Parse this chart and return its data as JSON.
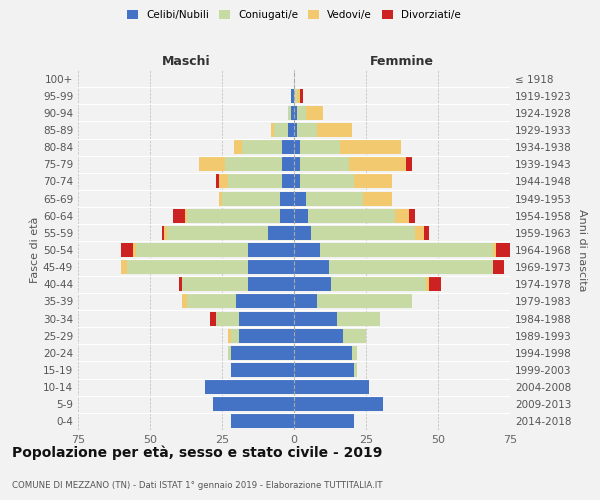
{
  "age_groups": [
    "0-4",
    "5-9",
    "10-14",
    "15-19",
    "20-24",
    "25-29",
    "30-34",
    "35-39",
    "40-44",
    "45-49",
    "50-54",
    "55-59",
    "60-64",
    "65-69",
    "70-74",
    "75-79",
    "80-84",
    "85-89",
    "90-94",
    "95-99",
    "100+"
  ],
  "birth_years": [
    "2014-2018",
    "2009-2013",
    "2004-2008",
    "1999-2003",
    "1994-1998",
    "1989-1993",
    "1984-1988",
    "1979-1983",
    "1974-1978",
    "1969-1973",
    "1964-1968",
    "1959-1963",
    "1954-1958",
    "1949-1953",
    "1944-1948",
    "1939-1943",
    "1934-1938",
    "1929-1933",
    "1924-1928",
    "1919-1923",
    "≤ 1918"
  ],
  "maschi": {
    "celibi": [
      22,
      28,
      31,
      22,
      22,
      19,
      19,
      20,
      16,
      16,
      16,
      9,
      5,
      5,
      4,
      4,
      4,
      2,
      1,
      1,
      0
    ],
    "coniugati": [
      0,
      0,
      0,
      0,
      1,
      3,
      8,
      17,
      23,
      42,
      39,
      35,
      32,
      20,
      19,
      20,
      14,
      5,
      1,
      0,
      0
    ],
    "vedovi": [
      0,
      0,
      0,
      0,
      0,
      1,
      0,
      2,
      0,
      2,
      1,
      1,
      1,
      1,
      3,
      9,
      3,
      1,
      0,
      0,
      0
    ],
    "divorziati": [
      0,
      0,
      0,
      0,
      0,
      0,
      2,
      0,
      1,
      0,
      4,
      1,
      4,
      0,
      1,
      0,
      0,
      0,
      0,
      0,
      0
    ]
  },
  "femmine": {
    "nubili": [
      21,
      31,
      26,
      21,
      20,
      17,
      15,
      8,
      13,
      12,
      9,
      6,
      5,
      4,
      2,
      2,
      2,
      1,
      1,
      0,
      0
    ],
    "coniugate": [
      0,
      0,
      0,
      1,
      2,
      8,
      15,
      33,
      33,
      57,
      60,
      36,
      30,
      20,
      19,
      17,
      14,
      7,
      3,
      1,
      0
    ],
    "vedove": [
      0,
      0,
      0,
      0,
      0,
      0,
      0,
      0,
      1,
      0,
      1,
      3,
      5,
      10,
      13,
      20,
      21,
      12,
      6,
      1,
      0
    ],
    "divorziate": [
      0,
      0,
      0,
      0,
      0,
      0,
      0,
      0,
      4,
      4,
      5,
      2,
      2,
      0,
      0,
      2,
      0,
      0,
      0,
      1,
      0
    ]
  },
  "colors": {
    "celibi": "#4472C4",
    "coniugati": "#c8daa4",
    "vedovi": "#f2c96e",
    "divorziati": "#cc2222"
  },
  "xlim": 75,
  "title": "Popolazione per età, sesso e stato civile - 2019",
  "subtitle": "COMUNE DI MEZZANO (TN) - Dati ISTAT 1° gennaio 2019 - Elaborazione TUTTITALIA.IT",
  "xlabel_left": "Maschi",
  "xlabel_right": "Femmine",
  "ylabel_left": "Fasce di età",
  "ylabel_right": "Anni di nascita",
  "legend_labels": [
    "Celibi/Nubili",
    "Coniugati/e",
    "Vedovi/e",
    "Divorziati/e"
  ],
  "background_color": "#f2f2f2"
}
